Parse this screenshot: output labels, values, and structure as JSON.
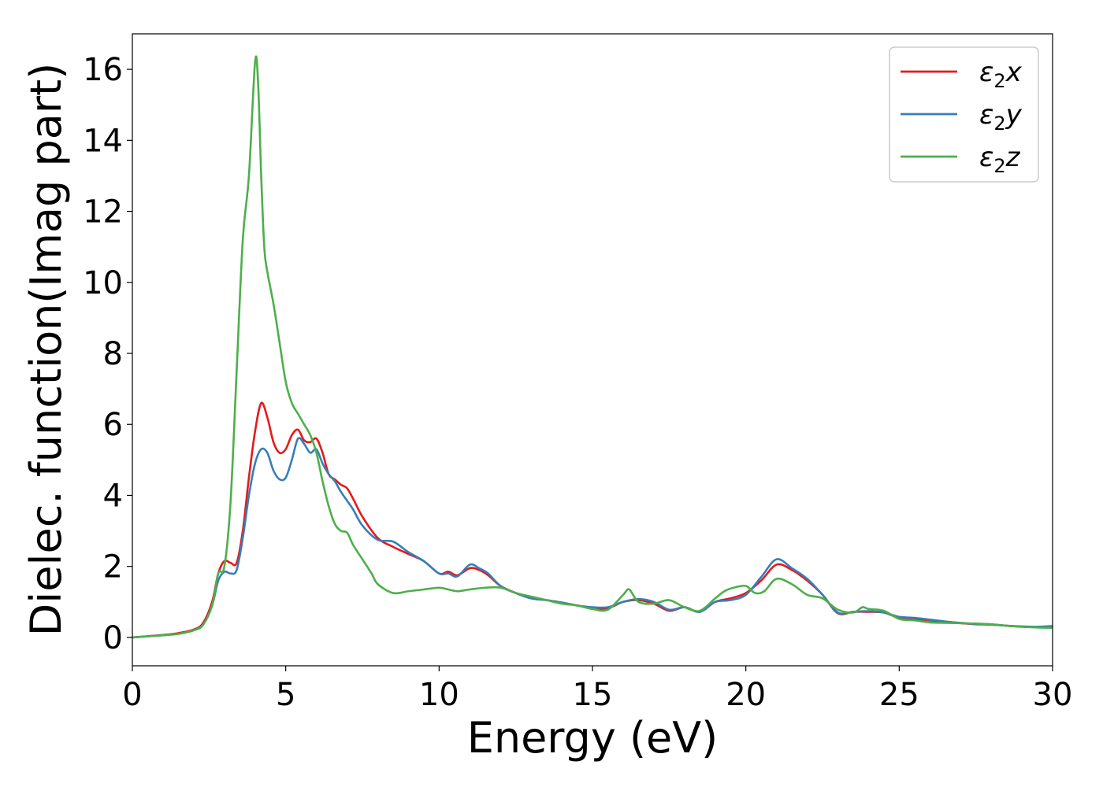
{
  "chart_data": {
    "type": "line",
    "title": "",
    "xlabel": "Energy (eV)",
    "ylabel": "Dielec. function(Imag part)",
    "xlim": [
      0,
      30
    ],
    "ylim": [
      -0.8,
      17.0
    ],
    "xticks": [
      0,
      5,
      10,
      15,
      20,
      25,
      30
    ],
    "yticks": [
      0,
      2,
      4,
      6,
      8,
      10,
      12,
      14,
      16
    ],
    "grid": false,
    "legend_position": "top-right",
    "series": [
      {
        "name_base": "ε",
        "name_sub": "2",
        "name_suffix": "x",
        "color": "#e41a1c",
        "x": [
          0,
          1,
          1.5,
          2,
          2.3,
          2.6,
          2.8,
          3.0,
          3.2,
          3.4,
          3.6,
          3.8,
          4.0,
          4.2,
          4.4,
          4.6,
          4.8,
          5.0,
          5.2,
          5.4,
          5.6,
          5.8,
          6.0,
          6.2,
          6.4,
          6.6,
          6.8,
          7.0,
          7.2,
          7.5,
          8.0,
          8.5,
          9.0,
          9.5,
          10.0,
          10.3,
          10.6,
          11.0,
          11.3,
          11.6,
          12.0,
          12.5,
          13.0,
          13.5,
          14.0,
          14.5,
          15.0,
          15.5,
          16.0,
          16.5,
          17.0,
          17.5,
          18.0,
          18.5,
          19.0,
          19.5,
          20.0,
          20.5,
          21.0,
          21.5,
          22.0,
          22.5,
          23.0,
          23.5,
          24.0,
          24.5,
          25.0,
          25.5,
          26.0,
          26.5,
          27.0,
          27.5,
          28.0,
          28.5,
          29.0,
          29.5,
          30.0
        ],
        "y": [
          0,
          0.07,
          0.12,
          0.22,
          0.4,
          1.0,
          1.8,
          2.15,
          2.1,
          2.1,
          3.0,
          4.5,
          5.8,
          6.6,
          6.2,
          5.5,
          5.2,
          5.3,
          5.7,
          5.85,
          5.55,
          5.5,
          5.6,
          5.2,
          4.6,
          4.45,
          4.3,
          4.2,
          3.9,
          3.4,
          2.8,
          2.55,
          2.35,
          2.15,
          1.8,
          1.85,
          1.75,
          1.95,
          1.9,
          1.75,
          1.45,
          1.25,
          1.1,
          1.05,
          0.98,
          0.9,
          0.82,
          0.82,
          1.0,
          1.05,
          0.95,
          0.75,
          0.85,
          0.72,
          1.0,
          1.1,
          1.25,
          1.6,
          2.05,
          1.9,
          1.6,
          1.2,
          0.68,
          0.72,
          0.72,
          0.7,
          0.55,
          0.52,
          0.48,
          0.43,
          0.4,
          0.37,
          0.36,
          0.33,
          0.3,
          0.29,
          0.29
        ]
      },
      {
        "name_base": "ε",
        "name_sub": "2",
        "name_suffix": "y",
        "color": "#377eb8",
        "x": [
          0,
          1,
          1.5,
          2,
          2.3,
          2.6,
          2.8,
          3.0,
          3.2,
          3.4,
          3.6,
          3.8,
          4.0,
          4.2,
          4.4,
          4.6,
          4.8,
          5.0,
          5.2,
          5.4,
          5.6,
          5.8,
          6.0,
          6.2,
          6.4,
          6.6,
          6.8,
          7.0,
          7.2,
          7.5,
          8.0,
          8.5,
          9.0,
          9.5,
          10.0,
          10.3,
          10.6,
          11.0,
          11.3,
          11.6,
          12.0,
          12.5,
          13.0,
          13.5,
          14.0,
          14.5,
          15.0,
          15.5,
          16.0,
          16.5,
          17.0,
          17.5,
          18.0,
          18.5,
          19.0,
          19.5,
          20.0,
          20.5,
          21.0,
          21.5,
          22.0,
          22.5,
          23.0,
          23.5,
          24.0,
          24.5,
          25.0,
          25.5,
          26.0,
          26.5,
          27.0,
          27.5,
          28.0,
          28.5,
          29.0,
          29.5,
          30.0
        ],
        "y": [
          0,
          0.06,
          0.1,
          0.2,
          0.35,
          0.9,
          1.6,
          1.85,
          1.8,
          1.9,
          2.8,
          4.0,
          4.9,
          5.3,
          5.2,
          4.7,
          4.45,
          4.5,
          5.0,
          5.6,
          5.45,
          5.2,
          5.3,
          4.9,
          4.6,
          4.4,
          4.1,
          3.85,
          3.6,
          3.15,
          2.75,
          2.7,
          2.4,
          2.15,
          1.8,
          1.8,
          1.72,
          2.05,
          1.95,
          1.8,
          1.45,
          1.25,
          1.1,
          1.05,
          0.98,
          0.9,
          0.85,
          0.85,
          1.0,
          1.08,
          1.0,
          0.78,
          0.85,
          0.72,
          1.0,
          1.05,
          1.2,
          1.7,
          2.2,
          1.95,
          1.65,
          1.2,
          0.7,
          0.72,
          0.74,
          0.7,
          0.58,
          0.55,
          0.5,
          0.45,
          0.41,
          0.38,
          0.36,
          0.33,
          0.31,
          0.3,
          0.32
        ]
      },
      {
        "name_base": "ε",
        "name_sub": "2",
        "name_suffix": "z",
        "color": "#4daf4a",
        "x": [
          0,
          1,
          1.5,
          2,
          2.3,
          2.6,
          2.8,
          3.0,
          3.2,
          3.4,
          3.6,
          3.8,
          4.0,
          4.1,
          4.2,
          4.3,
          4.4,
          4.6,
          4.8,
          5.0,
          5.2,
          5.4,
          5.6,
          5.8,
          6.0,
          6.2,
          6.4,
          6.6,
          6.8,
          7.0,
          7.2,
          7.5,
          7.8,
          8.0,
          8.5,
          9.0,
          9.5,
          10.0,
          10.3,
          10.6,
          11.0,
          11.5,
          12.0,
          12.5,
          13.0,
          13.5,
          14.0,
          14.5,
          15.0,
          15.5,
          16.0,
          16.2,
          16.5,
          17.0,
          17.5,
          18.0,
          18.5,
          19.0,
          19.3,
          19.6,
          20.0,
          20.3,
          20.6,
          21.0,
          21.5,
          22.0,
          22.5,
          23.0,
          23.5,
          23.8,
          24.0,
          24.5,
          25.0,
          25.5,
          26.0,
          26.5,
          27.0,
          27.5,
          28.0,
          28.5,
          29.0,
          29.5,
          30.0
        ],
        "y": [
          0,
          0.06,
          0.1,
          0.2,
          0.35,
          0.9,
          1.8,
          2.0,
          3.8,
          7.5,
          11.2,
          13.0,
          16.2,
          15.6,
          13.0,
          11.0,
          10.3,
          9.4,
          8.3,
          7.2,
          6.6,
          6.3,
          6.0,
          5.7,
          5.2,
          4.4,
          3.7,
          3.2,
          3.0,
          2.95,
          2.6,
          2.2,
          1.8,
          1.5,
          1.25,
          1.3,
          1.35,
          1.4,
          1.35,
          1.3,
          1.35,
          1.4,
          1.4,
          1.25,
          1.15,
          1.05,
          0.95,
          0.9,
          0.8,
          0.78,
          1.2,
          1.35,
          1.0,
          0.95,
          1.05,
          0.85,
          0.75,
          1.1,
          1.3,
          1.4,
          1.45,
          1.25,
          1.3,
          1.65,
          1.5,
          1.2,
          1.1,
          0.78,
          0.7,
          0.85,
          0.8,
          0.75,
          0.52,
          0.48,
          0.42,
          0.41,
          0.4,
          0.39,
          0.37,
          0.33,
          0.3,
          0.28,
          0.27
        ]
      }
    ]
  }
}
